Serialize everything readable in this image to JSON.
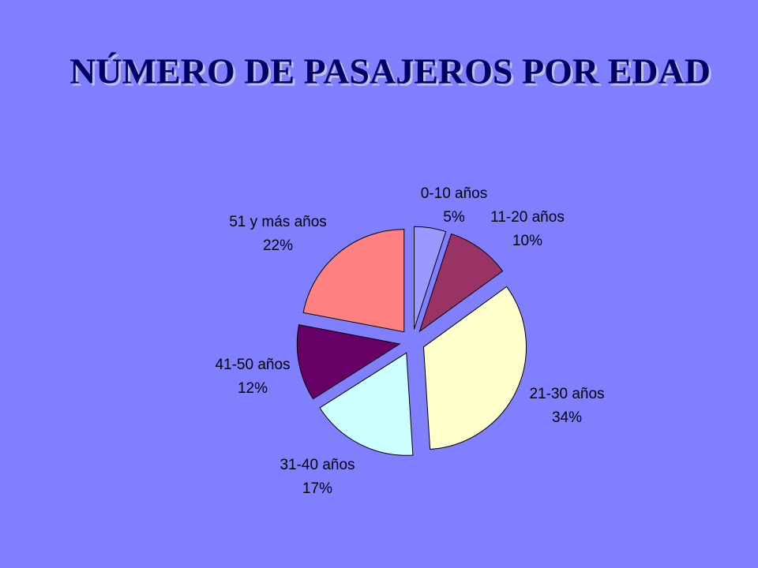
{
  "chart_data": {
    "type": "pie",
    "title": "NÚMERO DE PASAJEROS POR EDAD",
    "categories": [
      "0-10 años",
      "11-20 años",
      "21-30 años",
      "31-40 años",
      "41-50 años",
      "51 y más años"
    ],
    "values": [
      5,
      10,
      34,
      17,
      12,
      22
    ],
    "value_labels": [
      "5%",
      "10%",
      "34%",
      "17%",
      "12%",
      "22%"
    ],
    "colors": [
      "#9999ff",
      "#993366",
      "#ffffcc",
      "#ccffff",
      "#660066",
      "#ff8080"
    ]
  }
}
